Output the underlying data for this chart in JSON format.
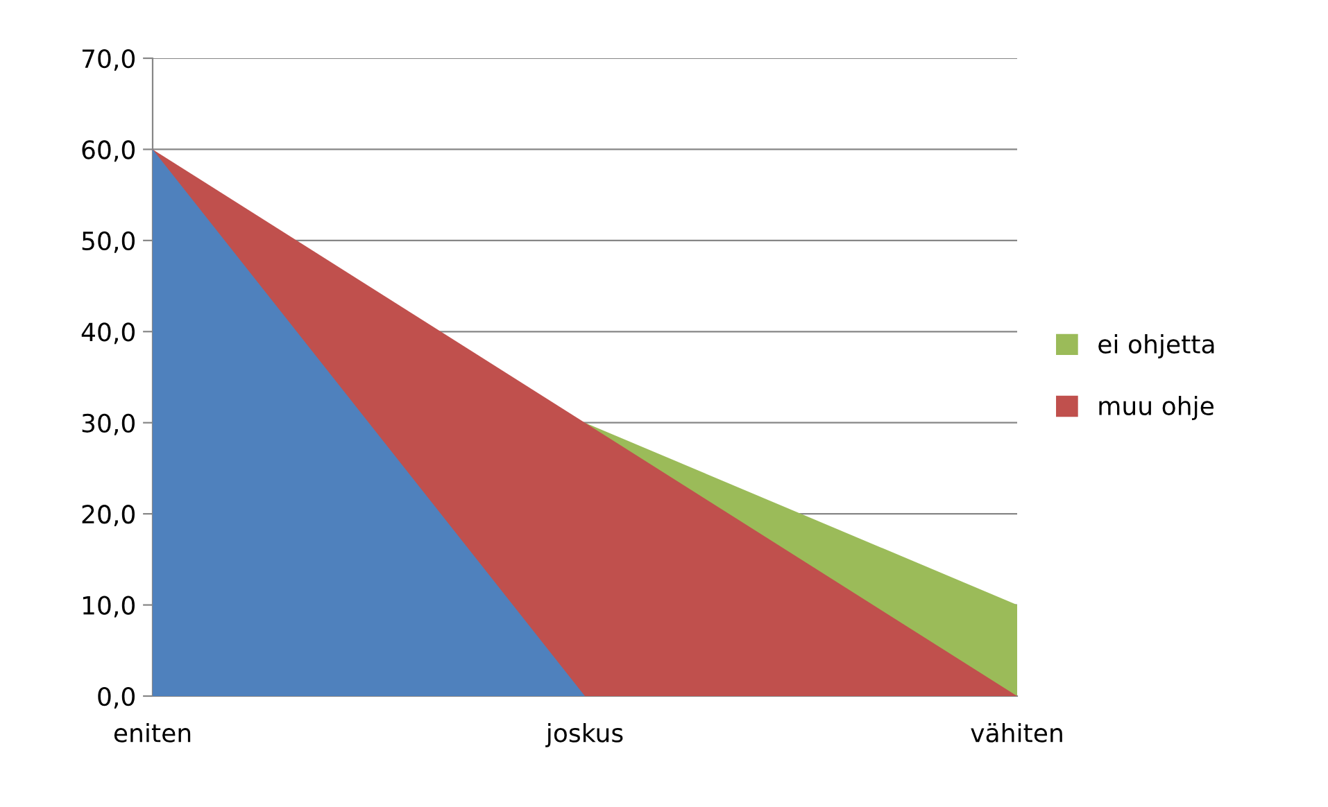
{
  "chart_data": {
    "type": "area",
    "categories": [
      "eniten",
      "joskus",
      "vähiten"
    ],
    "series": [
      {
        "name": "ei ohjetta",
        "color": "#9bbb59",
        "values": [
          null,
          30,
          10
        ]
      },
      {
        "name": "muu ohje",
        "color": "#c0504d",
        "values": [
          60,
          30,
          0
        ]
      },
      {
        "color": "#4f81bd",
        "values": [
          60,
          0,
          null
        ]
      }
    ],
    "ylim": [
      0,
      70
    ],
    "yticks": [
      {
        "value": 0,
        "label": "0,0"
      },
      {
        "value": 10,
        "label": "10,0"
      },
      {
        "value": 20,
        "label": "20,0"
      },
      {
        "value": 30,
        "label": "30,0"
      },
      {
        "value": 40,
        "label": "40,0"
      },
      {
        "value": 50,
        "label": "50,0"
      },
      {
        "value": 60,
        "label": "60,0"
      },
      {
        "value": 70,
        "label": "70,0"
      }
    ],
    "grid": "y",
    "legend": "right"
  }
}
